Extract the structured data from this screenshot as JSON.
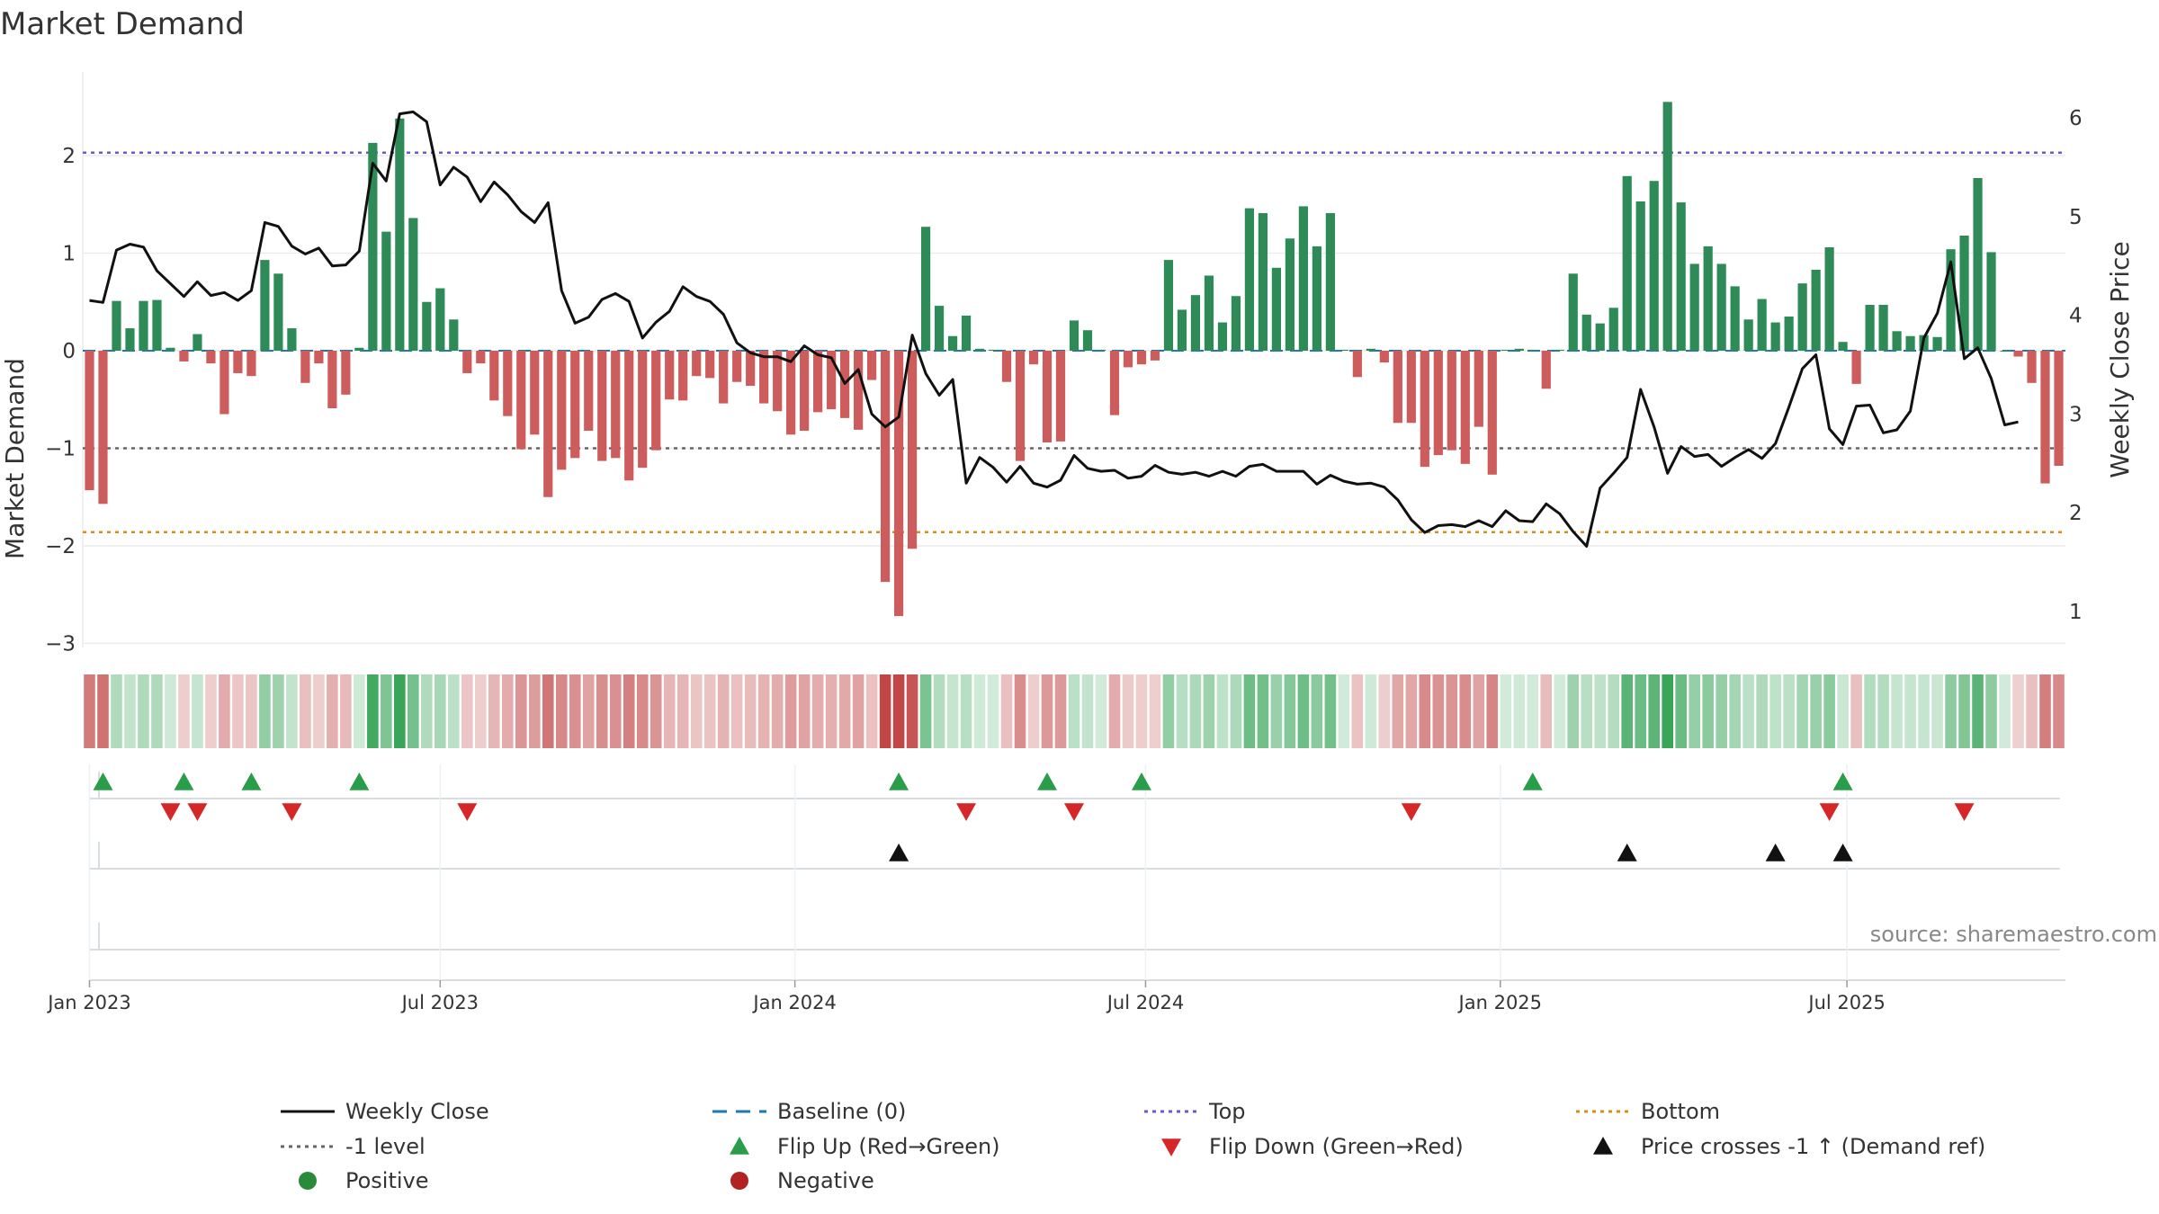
{
  "chart_data": {
    "type": "bar",
    "title": "Market Demand",
    "ylabel_left": "Market Demand",
    "ylabel_right": "Weekly Close Price",
    "source": "source: sharemaestro.com",
    "ylim_left": [
      -3.3,
      2.9
    ],
    "ylim_right": [
      0.55,
      6.4
    ],
    "yticks_left": [
      {
        "value": 2,
        "label": "2"
      },
      {
        "value": 1,
        "label": "1"
      },
      {
        "value": 0,
        "label": "0"
      },
      {
        "value": -1,
        "label": "−1"
      },
      {
        "value": -2,
        "label": "−2"
      },
      {
        "value": -3,
        "label": "−3"
      }
    ],
    "yticks_right": [
      {
        "value": 6,
        "label": "6"
      },
      {
        "value": 5,
        "label": "5"
      },
      {
        "value": 4,
        "label": "4"
      },
      {
        "value": 3,
        "label": "3"
      },
      {
        "value": 2,
        "label": "2"
      },
      {
        "value": 1,
        "label": "1"
      }
    ],
    "xticks": [
      {
        "week": 0,
        "label": "Jan 2023"
      },
      {
        "week": 26,
        "label": "Jul 2023"
      },
      {
        "week": 52.3,
        "label": "Jan 2024"
      },
      {
        "week": 78.3,
        "label": "Jul 2024"
      },
      {
        "week": 104.6,
        "label": "Jan 2025"
      },
      {
        "week": 130.3,
        "label": "Jul 2025"
      }
    ],
    "levels": {
      "top": 2.03,
      "minus_one": -1.0,
      "bottom": -1.86,
      "baseline": 0
    },
    "demand": [
      -1.43,
      -1.57,
      0.51,
      0.23,
      0.51,
      0.52,
      0.03,
      -0.11,
      0.17,
      -0.13,
      -0.65,
      -0.23,
      -0.26,
      0.93,
      0.79,
      0.23,
      -0.33,
      -0.13,
      -0.59,
      -0.45,
      0.03,
      2.13,
      1.22,
      2.38,
      1.36,
      0.5,
      0.64,
      0.32,
      -0.23,
      -0.13,
      -0.51,
      -0.67,
      -1.01,
      -0.86,
      -1.5,
      -1.22,
      -1.1,
      -0.82,
      -1.13,
      -1.1,
      -1.33,
      -1.2,
      -1.02,
      -0.5,
      -0.51,
      -0.26,
      -0.28,
      -0.54,
      -0.32,
      -0.36,
      -0.54,
      -0.62,
      -0.86,
      -0.82,
      -0.63,
      -0.6,
      -0.69,
      -0.81,
      -0.3,
      -2.37,
      -2.72,
      -2.03,
      1.27,
      0.46,
      0.15,
      0.36,
      0.02,
      0.01,
      -0.32,
      -1.13,
      -0.14,
      -0.94,
      -0.93,
      0.31,
      0.21,
      0.01,
      -0.66,
      -0.17,
      -0.14,
      -0.1,
      0.93,
      0.42,
      0.57,
      0.77,
      0.29,
      0.56,
      1.46,
      1.41,
      0.85,
      1.15,
      1.48,
      1.07,
      1.41,
      0.01,
      -0.27,
      0.02,
      -0.12,
      -0.74,
      -0.74,
      -1.19,
      -1.07,
      -1.02,
      -1.16,
      -0.78,
      -1.27,
      0.01,
      0.02,
      0.01,
      -0.39,
      0.01,
      0.79,
      0.37,
      0.28,
      0.44,
      1.79,
      1.53,
      1.74,
      2.55,
      1.52,
      0.89,
      1.07,
      0.89,
      0.66,
      0.32,
      0.53,
      0.29,
      0.35,
      0.69,
      0.83,
      1.06,
      0.09,
      -0.34,
      0.47,
      0.47,
      0.2,
      0.15,
      0.16,
      0.14,
      1.04,
      1.18,
      1.77,
      1.01,
      0.0,
      -0.06,
      -0.33,
      -1.36,
      -1.18
    ],
    "close": [
      4.15,
      4.13,
      4.66,
      4.72,
      4.69,
      4.45,
      4.32,
      4.19,
      4.34,
      4.2,
      4.23,
      4.15,
      4.25,
      4.94,
      4.9,
      4.7,
      4.62,
      4.68,
      4.5,
      4.51,
      4.65,
      5.54,
      5.36,
      6.04,
      6.06,
      5.96,
      5.32,
      5.5,
      5.4,
      5.15,
      5.35,
      5.22,
      5.05,
      4.94,
      5.14,
      4.25,
      3.92,
      3.98,
      4.16,
      4.22,
      4.14,
      3.77,
      3.93,
      4.04,
      4.29,
      4.19,
      4.14,
      4.01,
      3.72,
      3.62,
      3.58,
      3.58,
      3.53,
      3.69,
      3.6,
      3.57,
      3.31,
      3.45,
      3.0,
      2.87,
      2.97,
      3.8,
      3.41,
      3.19,
      3.35,
      2.3,
      2.56,
      2.46,
      2.31,
      2.47,
      2.3,
      2.26,
      2.33,
      2.58,
      2.45,
      2.42,
      2.43,
      2.35,
      2.37,
      2.48,
      2.41,
      2.39,
      2.41,
      2.37,
      2.42,
      2.37,
      2.47,
      2.49,
      2.42,
      2.42,
      2.42,
      2.29,
      2.38,
      2.32,
      2.29,
      2.3,
      2.26,
      2.13,
      1.93,
      1.8,
      1.87,
      1.88,
      1.86,
      1.92,
      1.86,
      2.02,
      1.92,
      1.91,
      2.09,
      1.99,
      1.81,
      1.66,
      2.25,
      2.4,
      2.56,
      3.25,
      2.87,
      2.4,
      2.67,
      2.57,
      2.59,
      2.47,
      2.56,
      2.64,
      2.55,
      2.7,
      3.07,
      3.46,
      3.6,
      2.85,
      2.69,
      3.08,
      3.09,
      2.81,
      2.84,
      3.03,
      3.77,
      4.02,
      4.54,
      3.56,
      3.67,
      3.36,
      2.89,
      2.92
    ],
    "flip_up_weeks": [
      1,
      7,
      12,
      20,
      60,
      71,
      78,
      107,
      130
    ],
    "flip_down_weeks": [
      6,
      8,
      15,
      28,
      65,
      73,
      98,
      129,
      139
    ],
    "price_cross_weeks": [
      60,
      114,
      125,
      130
    ],
    "legend": [
      {
        "symbol": "solid-line",
        "color": "#111111",
        "label": "Weekly Close"
      },
      {
        "symbol": "dashed-line",
        "color": "#1f77b4",
        "label": "Baseline (0)"
      },
      {
        "symbol": "dotted-line",
        "color": "#6a5acd",
        "label": "Top"
      },
      {
        "symbol": "dotted-line",
        "color": "#d98c1a",
        "label": "Bottom"
      },
      {
        "symbol": "dotted-line",
        "color": "#666666",
        "label": "-1 level"
      },
      {
        "symbol": "triangle-up",
        "color": "#2a9d4a",
        "label": "Flip Up (Red→Green)"
      },
      {
        "symbol": "triangle-down",
        "color": "#d62728",
        "label": "Flip Down (Green→Red)"
      },
      {
        "symbol": "triangle-up",
        "color": "#111111",
        "label": "Price crosses -1 ↑ (Demand ref)"
      },
      {
        "symbol": "circle",
        "color": "#2a8a3a",
        "label": "Positive"
      },
      {
        "symbol": "circle",
        "color": "#b22222",
        "label": "Negative"
      }
    ]
  },
  "colors": {
    "positive_bar": "#2e8b57",
    "negative_bar": "#cd5c5c",
    "top_line": "#6a5acd",
    "bottom_line": "#d98c1a",
    "minus_one_line": "#666666",
    "baseline": "#1f77b4",
    "close_line": "#111111"
  }
}
